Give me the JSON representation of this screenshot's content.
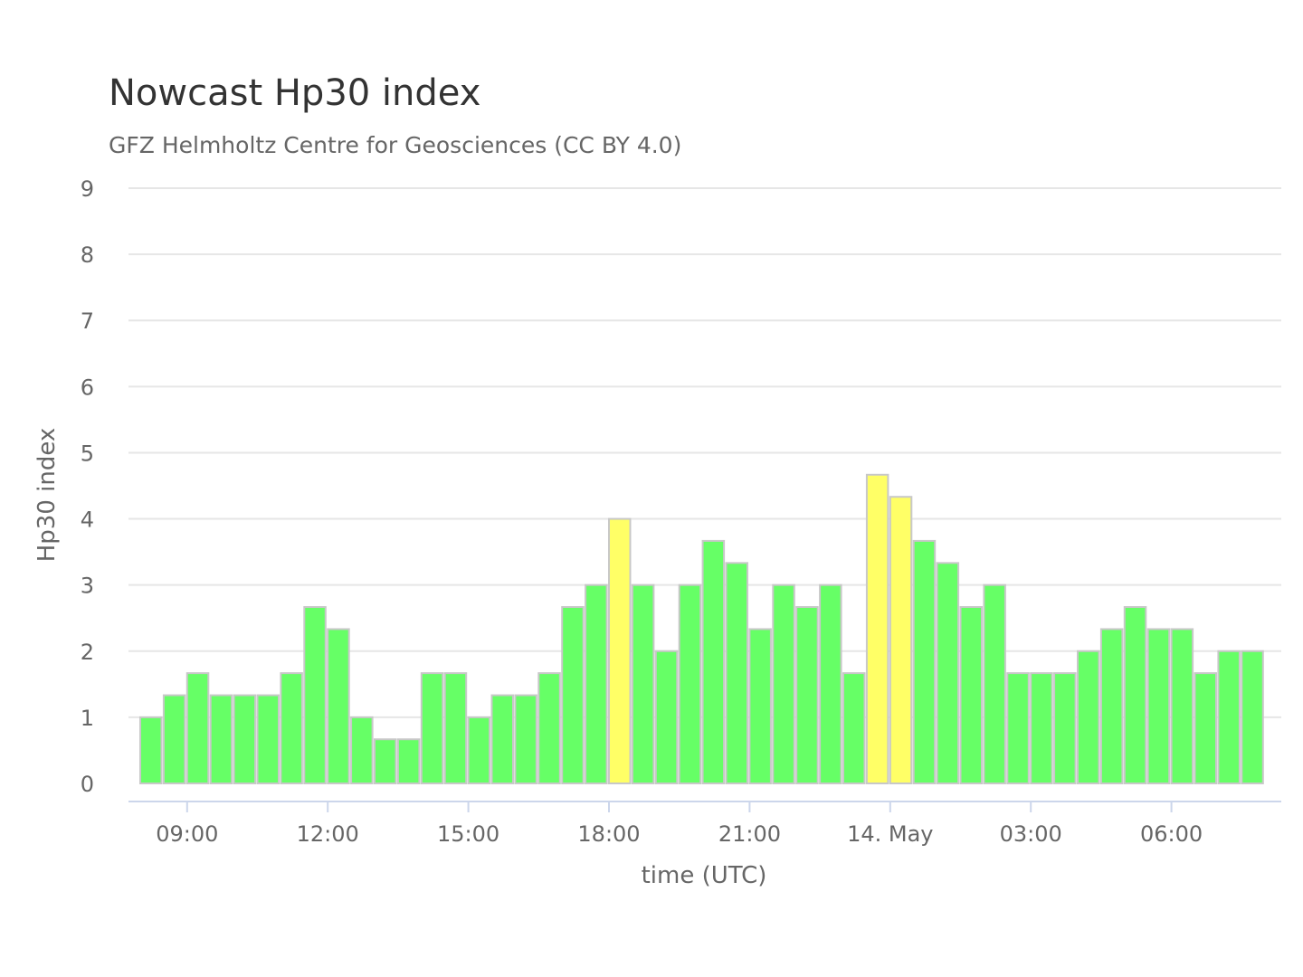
{
  "chart_data": {
    "type": "bar",
    "title": "Nowcast Hp30 index",
    "subtitle": "GFZ Helmholtz Centre for Geosciences (CC BY 4.0)",
    "xlabel": "time (UTC)",
    "ylabel": "Hp30 index",
    "ylim": [
      0,
      9
    ],
    "yticks": [
      "0",
      "1",
      "2",
      "3",
      "4",
      "5",
      "6",
      "7",
      "8",
      "9"
    ],
    "grid": true,
    "legend": "none",
    "interval_minutes": 30,
    "x_start": "13 May 08:00",
    "x_end": "14 May 08:00",
    "xticks": [
      {
        "label": "09:00",
        "hours_from_start": 1
      },
      {
        "label": "12:00",
        "hours_from_start": 4
      },
      {
        "label": "15:00",
        "hours_from_start": 7
      },
      {
        "label": "18:00",
        "hours_from_start": 10
      },
      {
        "label": "21:00",
        "hours_from_start": 13
      },
      {
        "label": "14. May",
        "hours_from_start": 16
      },
      {
        "label": "03:00",
        "hours_from_start": 19
      },
      {
        "label": "06:00",
        "hours_from_start": 22
      }
    ],
    "colors": {
      "below_4": "#66ff66",
      "from_4": "#ffff66"
    },
    "values": [
      1.0,
      1.333,
      1.667,
      1.333,
      1.333,
      1.333,
      1.667,
      2.667,
      2.333,
      1.0,
      0.667,
      0.667,
      1.667,
      1.667,
      1.0,
      1.333,
      1.333,
      1.667,
      2.667,
      3.0,
      4.0,
      3.0,
      2.0,
      3.0,
      3.667,
      3.333,
      2.333,
      3.0,
      2.667,
      3.0,
      1.667,
      4.667,
      4.333,
      3.667,
      3.333,
      2.667,
      3.0,
      1.667,
      1.667,
      1.667,
      2.0,
      2.333,
      2.667,
      2.333,
      2.333,
      1.667,
      2.0,
      2.0
    ]
  }
}
